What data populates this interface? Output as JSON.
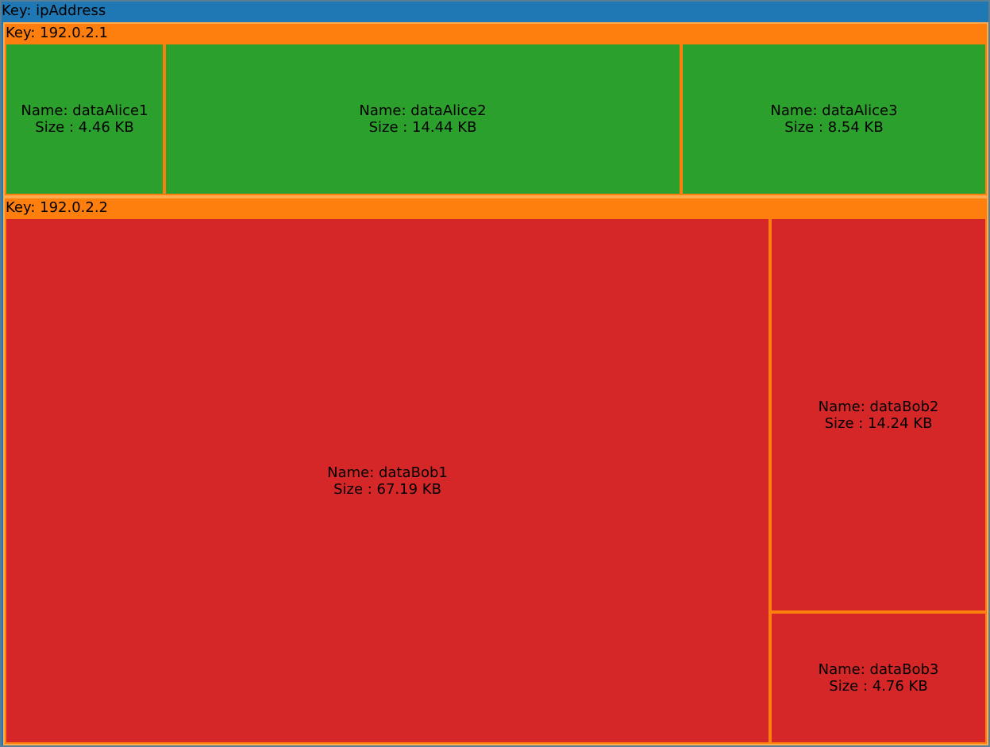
{
  "chart_data": {
    "type": "treemap",
    "size_unit": "KB",
    "root": {
      "key_label": "Key: ipAddress",
      "color": "#1f77b4"
    },
    "groups": [
      {
        "key_label": "Key: 192.0.2.1",
        "header_color": "#ff7f0e",
        "leaf_color": "#2ca02c",
        "children": [
          {
            "name_label": "Name: dataAlice1",
            "size_label": "Size : 4.46 KB",
            "size": 4.46
          },
          {
            "name_label": "Name: dataAlice2",
            "size_label": "Size : 14.44 KB",
            "size": 14.44
          },
          {
            "name_label": "Name: dataAlice3",
            "size_label": "Size : 8.54 KB",
            "size": 8.54
          }
        ]
      },
      {
        "key_label": "Key: 192.0.2.2",
        "header_color": "#ff7f0e",
        "leaf_color": "#d62728",
        "children": [
          {
            "name_label": "Name: dataBob1",
            "size_label": "Size : 67.19 KB",
            "size": 67.19
          },
          {
            "name_label": "Name: dataBob2",
            "size_label": "Size : 14.24 KB",
            "size": 14.24
          },
          {
            "name_label": "Name: dataBob3",
            "size_label": "Size : 4.76 KB",
            "size": 4.76
          }
        ]
      }
    ]
  }
}
